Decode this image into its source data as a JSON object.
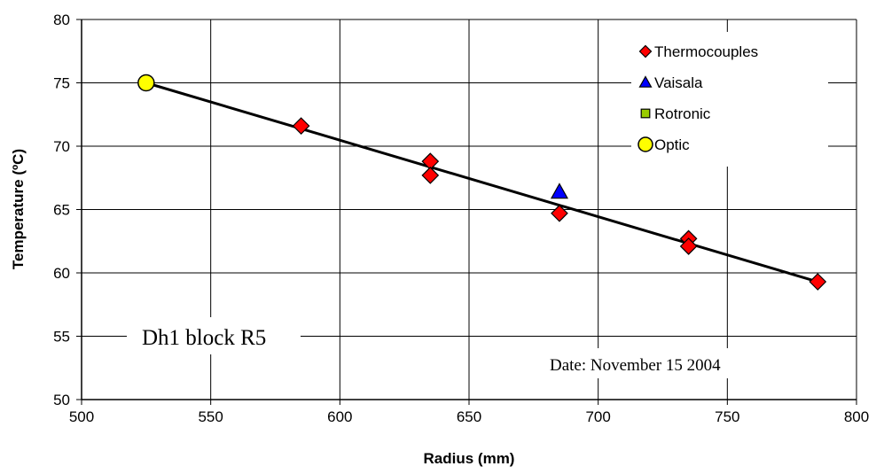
{
  "chart_data": {
    "type": "scatter",
    "xlabel": "Radius (mm)",
    "ylabel": "Temperature (ºC)",
    "xlim": [
      500,
      800
    ],
    "ylim": [
      50,
      80
    ],
    "xticks": [
      500,
      550,
      600,
      650,
      700,
      750,
      800
    ],
    "yticks": [
      50,
      55,
      60,
      65,
      70,
      75,
      80
    ],
    "grid": true,
    "legend_position": "top-right",
    "series": [
      {
        "name": "Thermocouples",
        "marker": "diamond",
        "color": "#ff0000",
        "x": [
          585,
          635,
          635,
          685,
          735,
          735,
          785
        ],
        "y": [
          71.6,
          68.8,
          67.7,
          64.7,
          62.7,
          62.1,
          59.3
        ]
      },
      {
        "name": "Vaisala",
        "marker": "triangle",
        "color": "#0000ff",
        "x": [
          685
        ],
        "y": [
          66.4
        ]
      },
      {
        "name": "Rotronic",
        "marker": "square",
        "color": "#99cc00",
        "x": [],
        "y": []
      },
      {
        "name": "Optic",
        "marker": "circle",
        "color": "#ffff00",
        "x": [
          525
        ],
        "y": [
          75.0
        ]
      }
    ],
    "trendline": {
      "x": [
        525,
        785
      ],
      "y": [
        75.0,
        59.3
      ],
      "color": "#000000"
    },
    "annotations": [
      {
        "text": "Dh1 block R5"
      },
      {
        "text": "Date: November 15 2004"
      }
    ]
  }
}
